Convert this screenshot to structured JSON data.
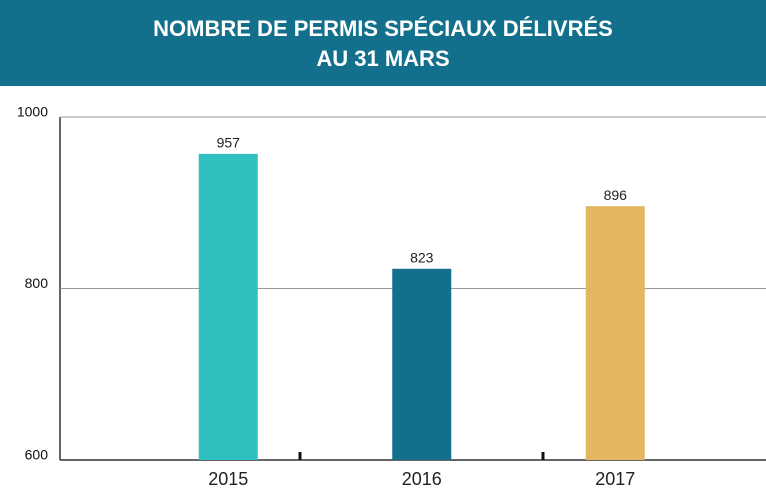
{
  "chart_data": {
    "type": "bar",
    "title": [
      "NOMBRE DE PERMIS SPÉCIAUX DÉLIVRÉS",
      "AU 31 MARS"
    ],
    "categories": [
      "2015",
      "2016",
      "2017"
    ],
    "values": [
      957,
      823,
      896
    ],
    "colors": [
      "#2ebfbf",
      "#136f8c",
      "#e3b662"
    ],
    "ylim": [
      600,
      1000
    ],
    "yticks": [
      600,
      800,
      1000
    ],
    "grid": true
  }
}
